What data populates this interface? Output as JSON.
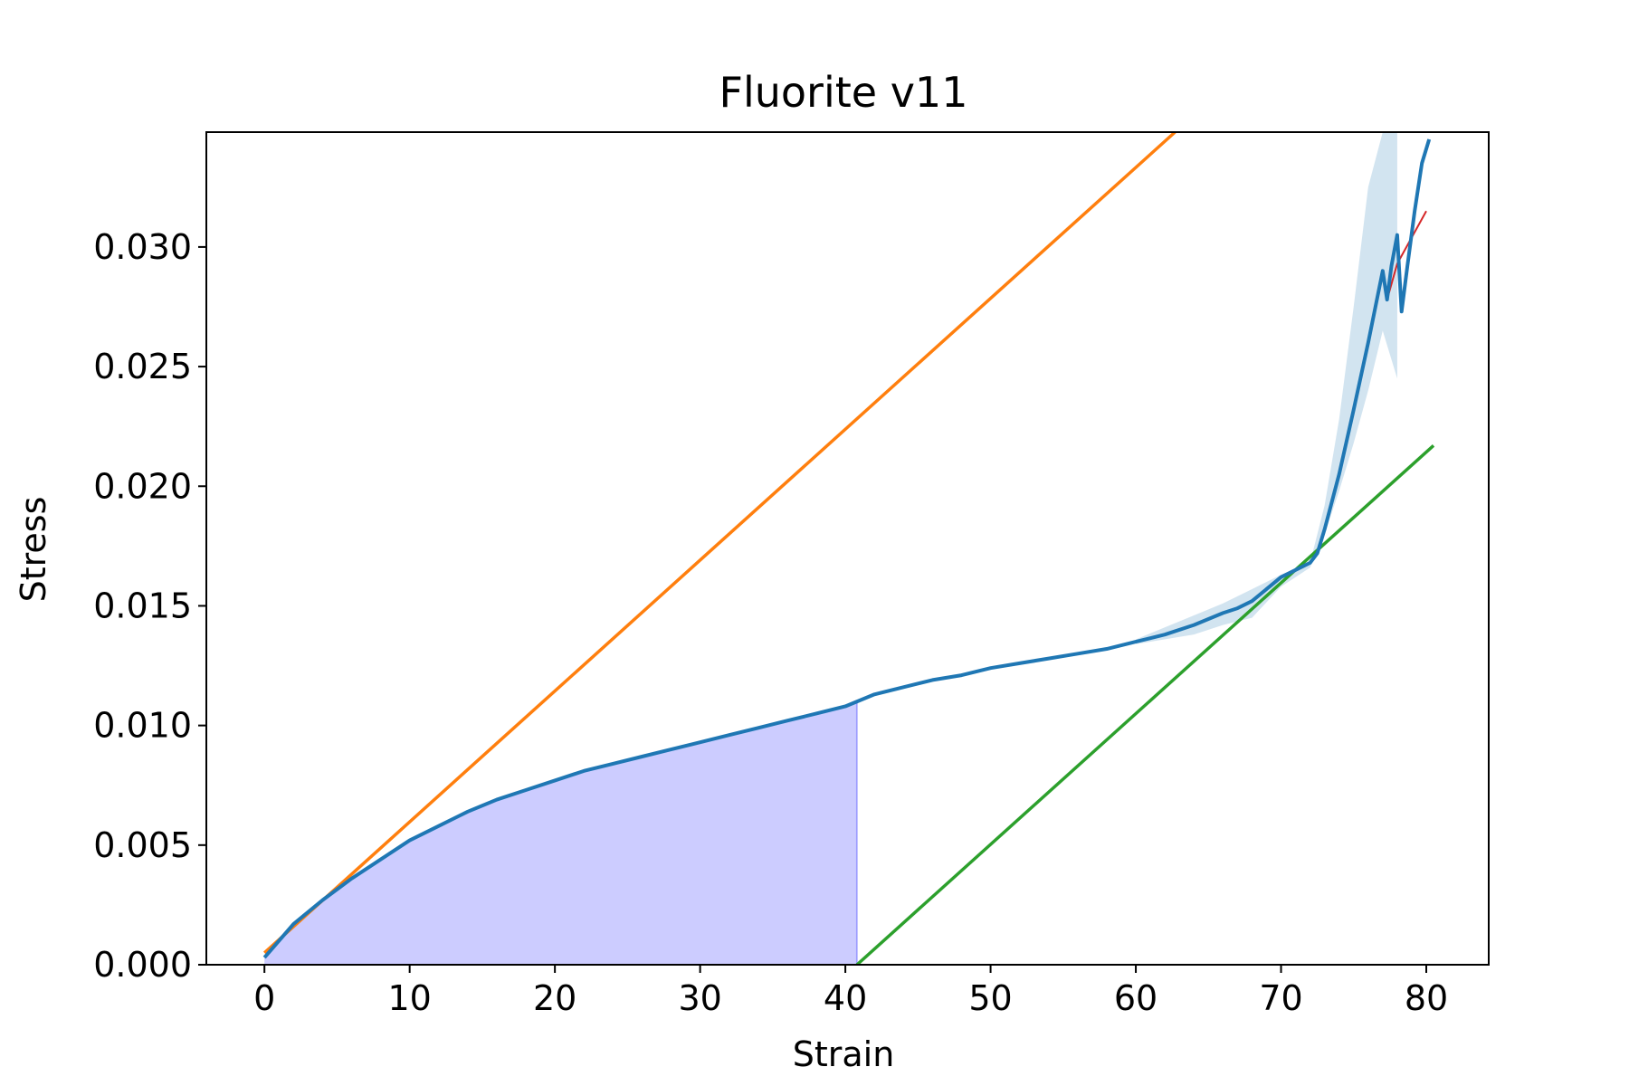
{
  "chart_data": {
    "type": "line",
    "title": "Fluorite v11",
    "xlabel": "Strain",
    "ylabel": "Stress",
    "xlim": [
      -4,
      84.3
    ],
    "ylim": [
      0,
      0.0348
    ],
    "xticks": [
      0,
      10,
      20,
      30,
      40,
      50,
      60,
      70,
      80
    ],
    "xtick_labels": [
      "0",
      "10",
      "20",
      "30",
      "40",
      "50",
      "60",
      "70",
      "80"
    ],
    "yticks": [
      0,
      0.005,
      0.01,
      0.015,
      0.02,
      0.025,
      0.03
    ],
    "ytick_labels": [
      "0.000",
      "0.005",
      "0.010",
      "0.015",
      "0.020",
      "0.025",
      "0.030"
    ],
    "grid": false,
    "legend": "none",
    "series": [
      {
        "role": "mean curve",
        "color": "#1f77b4",
        "x": [
          0,
          2,
          4,
          6,
          8,
          10,
          12,
          14,
          16,
          18,
          20,
          22,
          24,
          26,
          28,
          30,
          32,
          34,
          36,
          38,
          40,
          42,
          44,
          46,
          48,
          50,
          52,
          54,
          56,
          58,
          60,
          62,
          64,
          66,
          67,
          68,
          69,
          70,
          71,
          72,
          72.5,
          73,
          74,
          75,
          76,
          77,
          77.3,
          77.6,
          78,
          78.3,
          78.7,
          79.2,
          79.7,
          80.2
        ],
        "y": [
          0.0003,
          0.0017,
          0.0027,
          0.0036,
          0.0044,
          0.0052,
          0.0058,
          0.0064,
          0.0069,
          0.0073,
          0.0077,
          0.0081,
          0.0084,
          0.0087,
          0.009,
          0.0093,
          0.0096,
          0.0099,
          0.0102,
          0.0105,
          0.0108,
          0.0113,
          0.0116,
          0.0119,
          0.0121,
          0.0124,
          0.0126,
          0.0128,
          0.013,
          0.0132,
          0.0135,
          0.0138,
          0.0142,
          0.0147,
          0.0149,
          0.0152,
          0.0157,
          0.0162,
          0.0165,
          0.0168,
          0.0172,
          0.0182,
          0.0205,
          0.0232,
          0.026,
          0.029,
          0.0278,
          0.0292,
          0.0305,
          0.0273,
          0.0292,
          0.0315,
          0.0335,
          0.0345
        ]
      },
      {
        "role": "upper tangent line",
        "color": "#ff7f0e",
        "x": [
          0,
          62.7
        ],
        "y": [
          0.0005,
          0.0348
        ]
      },
      {
        "role": "lower offset line",
        "color": "#2ca02c",
        "x": [
          40.8,
          80.5
        ],
        "y": [
          0,
          0.0217
        ]
      },
      {
        "role": "red segment",
        "color": "#d62728",
        "x": [
          77.3,
          78,
          80
        ],
        "y": [
          0.0278,
          0.0293,
          0.0315
        ]
      }
    ],
    "band": {
      "role": "variability band",
      "color": "#1f77b4",
      "opacity": 0.2,
      "x": [
        60,
        64,
        66,
        68,
        70,
        72,
        73,
        74,
        75,
        76,
        77,
        78
      ],
      "upper": [
        0.0136,
        0.0146,
        0.0151,
        0.0157,
        0.0163,
        0.0168,
        0.0192,
        0.0228,
        0.0275,
        0.0325,
        0.0348,
        0.0348
      ],
      "lower": [
        0.0134,
        0.0138,
        0.0142,
        0.0145,
        0.0158,
        0.0166,
        0.018,
        0.0198,
        0.0218,
        0.024,
        0.0265,
        0.0245
      ]
    },
    "area": {
      "role": "shaded area under curve",
      "color": "#0000ff",
      "opacity": 0.2,
      "x_from": 0,
      "x_to": 40.8
    }
  }
}
